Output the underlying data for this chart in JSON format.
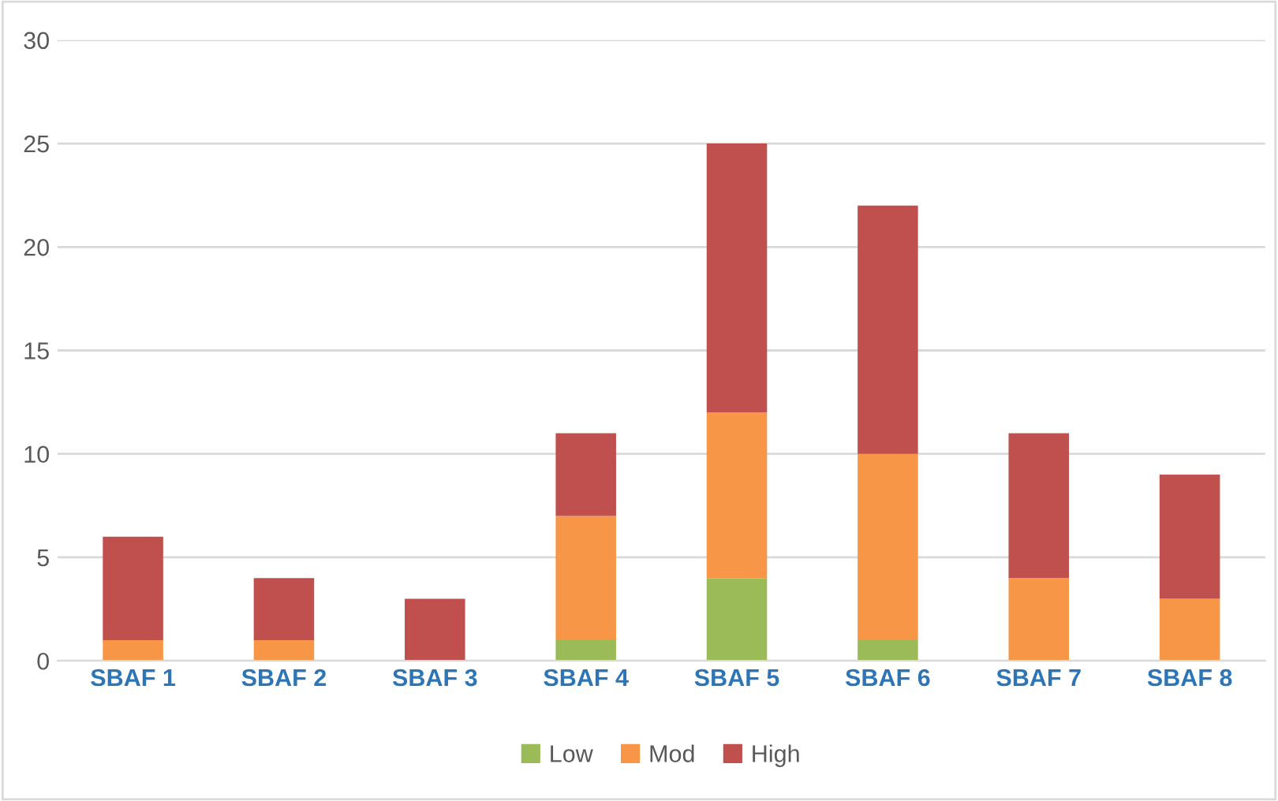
{
  "chart_data": {
    "type": "bar",
    "stacked": true,
    "categories": [
      "SBAF 1",
      "SBAF 2",
      "SBAF 3",
      "SBAF 4",
      "SBAF 5",
      "SBAF 6",
      "SBAF 7",
      "SBAF 8"
    ],
    "series": [
      {
        "name": "Low",
        "color": "#9bbb59",
        "values": [
          0,
          0,
          0,
          1,
          4,
          1,
          0,
          0
        ]
      },
      {
        "name": "Mod",
        "color": "#f79646",
        "values": [
          1,
          1,
          0,
          6,
          8,
          9,
          4,
          3
        ]
      },
      {
        "name": "High",
        "color": "#c0504d",
        "values": [
          5,
          3,
          3,
          4,
          13,
          12,
          7,
          6
        ]
      }
    ],
    "ylim": [
      0,
      30
    ],
    "yticks": [
      0,
      5,
      10,
      15,
      20,
      25,
      30
    ],
    "grid": "y",
    "legend": "bottom"
  }
}
